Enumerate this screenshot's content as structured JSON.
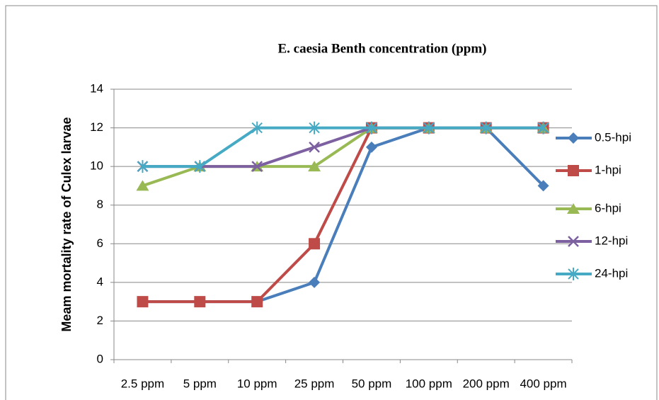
{
  "chart_data": {
    "type": "line",
    "title": "E. caesia Benth concentration (ppm)",
    "y_label": "Meam mortality rate of Culex larvae",
    "categories": [
      "2.5 ppm",
      "5 ppm",
      "10 ppm",
      "25 ppm",
      "50 ppm",
      "100 ppm",
      "200 ppm",
      "400 ppm"
    ],
    "series": [
      {
        "name": "0.5-hpi",
        "color": "#4a7ebb",
        "marker": "diamond",
        "values": [
          3,
          3,
          3,
          4,
          11,
          12,
          12,
          9
        ]
      },
      {
        "name": "1-hpi",
        "color": "#be4b48",
        "marker": "square",
        "values": [
          3,
          3,
          3,
          6,
          12,
          12,
          12,
          12
        ]
      },
      {
        "name": "6-hpi",
        "color": "#98b954",
        "marker": "triangle",
        "values": [
          9,
          10,
          10,
          10,
          12,
          12,
          12,
          12
        ]
      },
      {
        "name": "12-hpi",
        "color": "#7d60a0",
        "marker": "x",
        "values": [
          10,
          10,
          10,
          11,
          12,
          12,
          12,
          12
        ]
      },
      {
        "name": "24-hpi",
        "color": "#46aac5",
        "marker": "star",
        "values": [
          10,
          10,
          12,
          12,
          12,
          12,
          12,
          12
        ]
      }
    ],
    "ylim": [
      0,
      14
    ],
    "yticks": [
      0,
      2,
      4,
      6,
      8,
      10,
      12,
      14
    ],
    "grid": true,
    "legend": "right"
  }
}
